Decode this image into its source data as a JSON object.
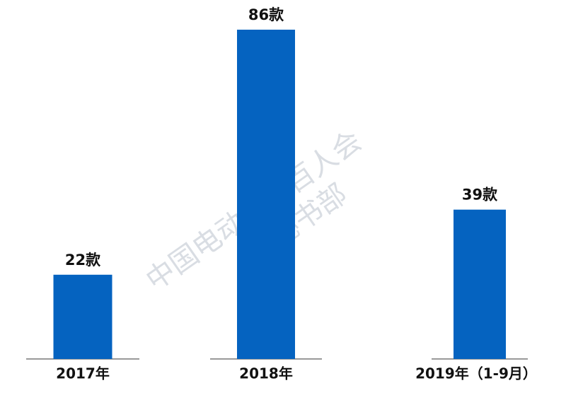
{
  "chart_data": {
    "type": "bar",
    "categories": [
      "2017年",
      "2018年",
      "2019年（1-9月）"
    ],
    "values": [
      22,
      86,
      39
    ],
    "value_labels": [
      "22款",
      "86款",
      "39款"
    ],
    "color": "#0563c0",
    "annotations": [
      "中国电动汽车百人会",
      "秘书部"
    ]
  }
}
